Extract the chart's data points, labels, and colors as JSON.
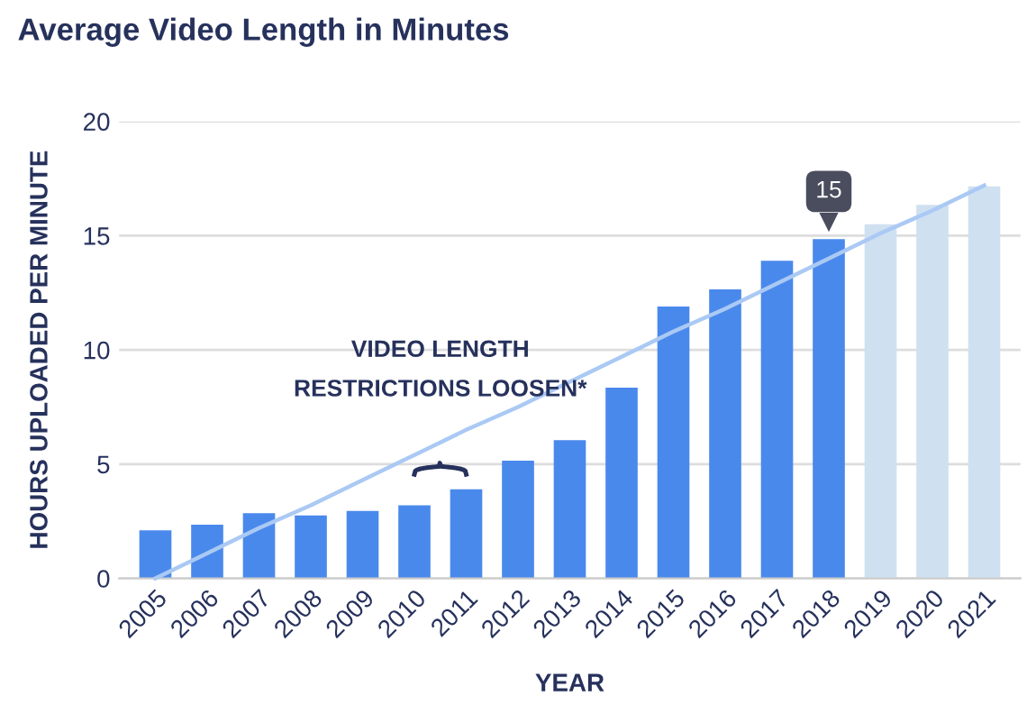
{
  "chart_data": {
    "type": "bar",
    "title": "Average Video Length in Minutes",
    "xlabel": "YEAR",
    "ylabel": "HOURS UPLOADED PER MINUTE",
    "categories": [
      "2005",
      "2006",
      "2007",
      "2008",
      "2009",
      "2010",
      "2011",
      "2012",
      "2013",
      "2014",
      "2015",
      "2016",
      "2017",
      "2018",
      "2019",
      "2020",
      "2021"
    ],
    "series": [
      {
        "values": [
          2.1,
          2.35,
          2.85,
          2.75,
          2.95,
          3.2,
          3.9,
          5.15,
          6.05,
          8.35,
          11.9,
          12.65,
          13.9,
          14.85,
          15.5,
          16.35,
          17.15
        ],
        "colors": [
          "#4a89ec",
          "#4a89ec",
          "#4a89ec",
          "#4a89ec",
          "#4a89ec",
          "#4a89ec",
          "#4a89ec",
          "#4a89ec",
          "#4a89ec",
          "#4a89ec",
          "#4a89ec",
          "#4a89ec",
          "#4a89ec",
          "#4a89ec",
          "#cfe0f1",
          "#cfe0f1",
          "#cfe0f1"
        ],
        "value_labels": [
          null,
          null,
          null,
          null,
          null,
          null,
          null,
          null,
          null,
          null,
          null,
          null,
          null,
          "15",
          null,
          null,
          null
        ]
      },
      {
        "type": "line",
        "color": "#aac9f4",
        "values": [
          0,
          1.1,
          2.2,
          3.2,
          4.3,
          5.4,
          6.5,
          7.5,
          8.6,
          9.7,
          10.8,
          11.8,
          12.9,
          14.0,
          15.1,
          16.1,
          17.2
        ]
      }
    ],
    "annotations": [
      "VIDEO LENGTH\nRESTRICTIONS LOOSEN*"
    ],
    "ylim": [
      0,
      20
    ],
    "yticks": [
      0,
      5,
      10,
      15,
      20
    ],
    "grid": "y"
  }
}
